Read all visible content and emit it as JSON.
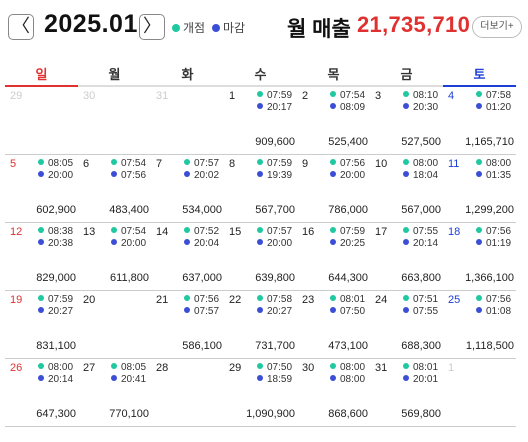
{
  "header": {
    "prev_label": "〈",
    "next_label": "〉",
    "month": "2025.01",
    "legend_open": "개점",
    "legend_close": "마감",
    "sales_label": "월 매출",
    "sales_total": "21,735,710",
    "more_label": "더보기+"
  },
  "colors": {
    "open": "#1ec9a0",
    "close": "#3b4fd4",
    "sunday": "#e03131",
    "saturday": "#1c3fd6",
    "total": "#e03131"
  },
  "weekdays": [
    "일",
    "월",
    "화",
    "수",
    "목",
    "금",
    "토"
  ],
  "weeks": [
    [
      {
        "day": "29",
        "other": true
      },
      {
        "day": "30",
        "other": true
      },
      {
        "day": "31",
        "other": true
      },
      {
        "day": "1",
        "open": "07:59",
        "close": "20:17",
        "amount": "909,600"
      },
      {
        "day": "2",
        "open": "07:54",
        "close": "08:09",
        "amount": "525,400"
      },
      {
        "day": "3",
        "open": "08:10",
        "close": "20:30",
        "amount": "527,500"
      },
      {
        "day": "4",
        "open": "07:58",
        "close": "01:20",
        "amount": "1,165,710"
      }
    ],
    [
      {
        "day": "5",
        "open": "08:05",
        "close": "20:00",
        "amount": "602,900"
      },
      {
        "day": "6",
        "open": "07:54",
        "close": "07:56",
        "amount": "483,400"
      },
      {
        "day": "7",
        "open": "07:57",
        "close": "20:02",
        "amount": "534,000"
      },
      {
        "day": "8",
        "open": "07:59",
        "close": "19:39",
        "amount": "567,700"
      },
      {
        "day": "9",
        "open": "07:56",
        "close": "20:00",
        "amount": "786,000"
      },
      {
        "day": "10",
        "open": "08:00",
        "close": "18:04",
        "amount": "567,000"
      },
      {
        "day": "11",
        "open": "08:00",
        "close": "01:35",
        "amount": "1,299,200"
      }
    ],
    [
      {
        "day": "12",
        "open": "08:38",
        "close": "20:38",
        "amount": "829,000"
      },
      {
        "day": "13",
        "open": "07:54",
        "close": "20:00",
        "amount": "611,800"
      },
      {
        "day": "14",
        "open": "07:52",
        "close": "20:04",
        "amount": "637,000"
      },
      {
        "day": "15",
        "open": "07:57",
        "close": "20:00",
        "amount": "639,800"
      },
      {
        "day": "16",
        "open": "07:59",
        "close": "20:25",
        "amount": "644,300"
      },
      {
        "day": "17",
        "open": "07:55",
        "close": "20:14",
        "amount": "663,800"
      },
      {
        "day": "18",
        "open": "07:56",
        "close": "01:19",
        "amount": "1,366,100"
      }
    ],
    [
      {
        "day": "19",
        "open": "07:59",
        "close": "20:27",
        "amount": "831,100"
      },
      {
        "day": "20"
      },
      {
        "day": "21",
        "open": "07:56",
        "close": "07:57",
        "amount": "586,100"
      },
      {
        "day": "22",
        "open": "07:58",
        "close": "20:27",
        "amount": "731,700"
      },
      {
        "day": "23",
        "open": "08:01",
        "close": "07:50",
        "amount": "473,100"
      },
      {
        "day": "24",
        "open": "07:51",
        "close": "07:55",
        "amount": "688,300"
      },
      {
        "day": "25",
        "open": "07:56",
        "close": "01:08",
        "amount": "1,118,500"
      }
    ],
    [
      {
        "day": "26",
        "open": "08:00",
        "close": "20:14",
        "amount": "647,300"
      },
      {
        "day": "27",
        "open": "08:05",
        "close": "20:41",
        "amount": "770,100"
      },
      {
        "day": "28"
      },
      {
        "day": "29",
        "open": "07:50",
        "close": "18:59",
        "amount": "1,090,900"
      },
      {
        "day": "30",
        "open": "08:00",
        "close": "08:00",
        "amount": "868,600"
      },
      {
        "day": "31",
        "open": "08:01",
        "close": "20:01",
        "amount": "569,800"
      },
      {
        "day": "1",
        "other": true
      }
    ]
  ]
}
